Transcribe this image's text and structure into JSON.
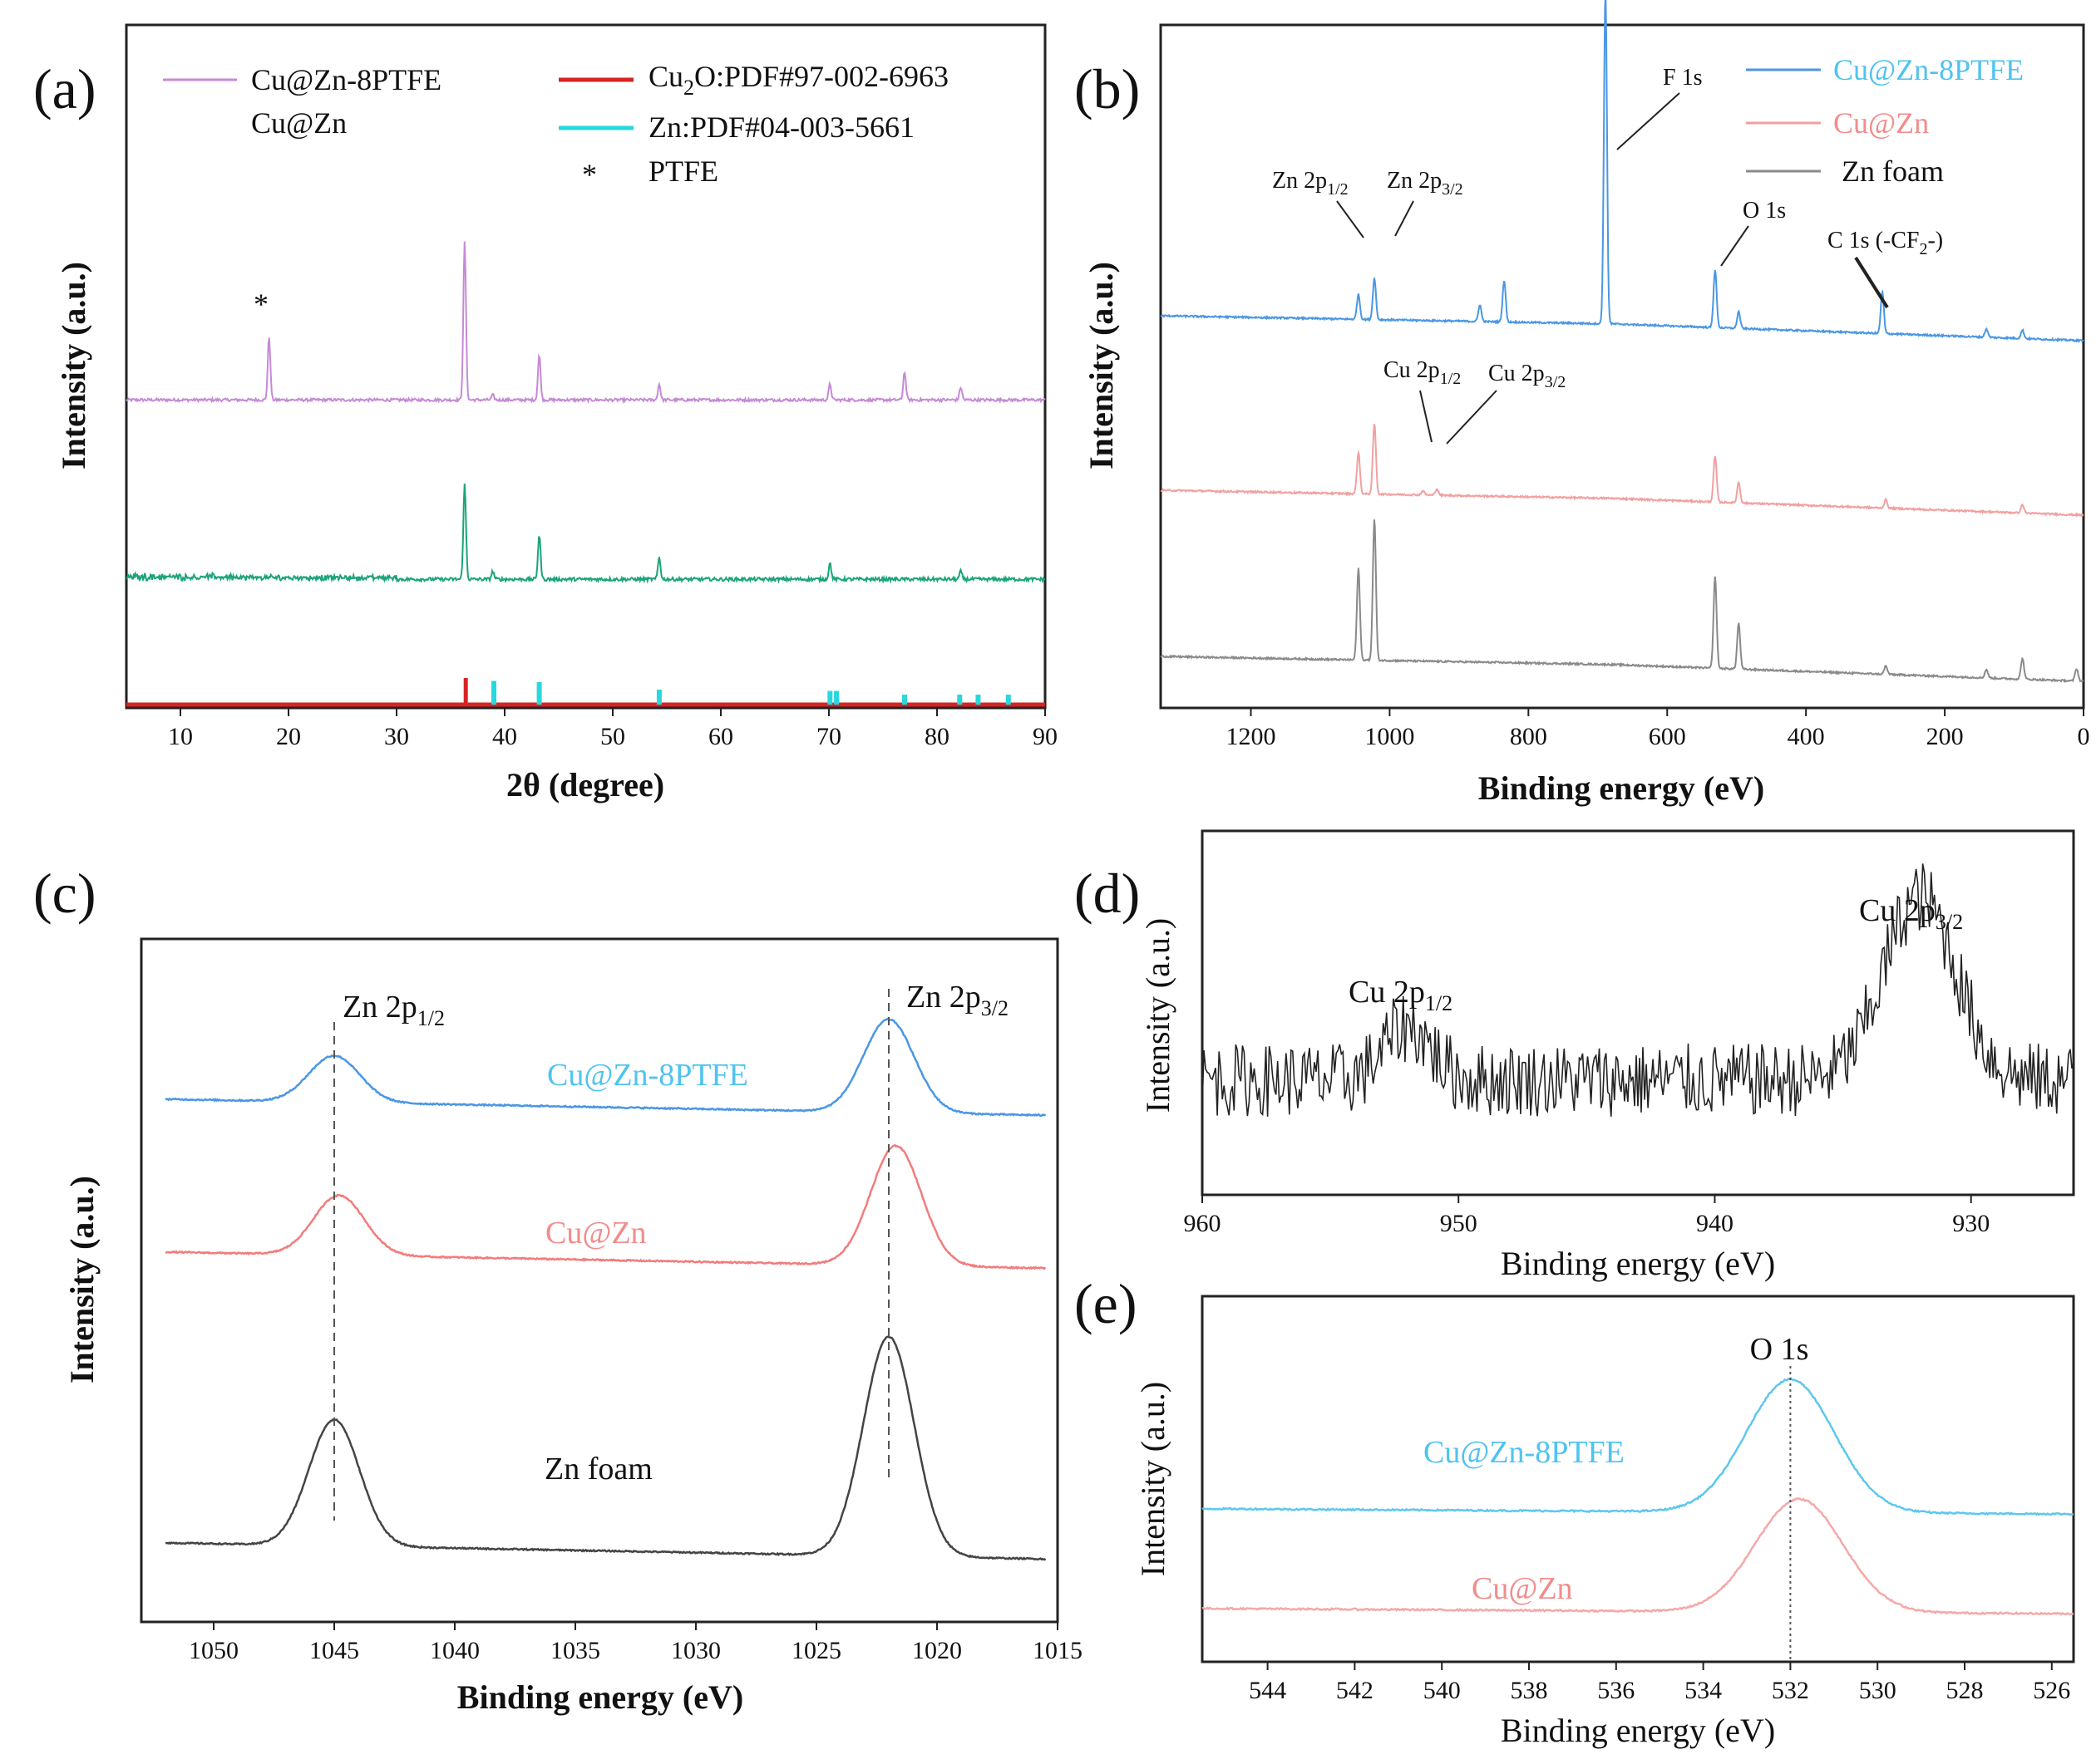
{
  "chart_data": [
    {
      "panel": "(a)",
      "type": "line",
      "xlabel": "2θ (degree)",
      "ylabel": "Intensity (a.u.)",
      "xlim": [
        5,
        90
      ],
      "xticks": [
        10,
        20,
        30,
        40,
        50,
        60,
        70,
        80,
        90
      ],
      "legend": [
        "Cu@Zn-8PTFE",
        "Cu@Zn",
        "Cu2O:PDF#97-002-6963",
        "Zn:PDF#04-003-5661",
        "PTFE"
      ],
      "legend_texts": {
        "s1": "Cu@Zn-8PTFE",
        "s2": "Cu@Zn",
        "ref1_a": "Cu",
        "ref1_sub": "2",
        "ref1_b": "O:PDF#97-002-6963",
        "ref2": "Zn:PDF#04-003-5661",
        "star": "*",
        "star_label": "PTFE"
      },
      "series": [
        {
          "name": "Cu@Zn-8PTFE",
          "color": "#c58ad6",
          "baseline": 0.0,
          "noise": 0.018,
          "peaks": [
            [
              18.2,
              0.4
            ],
            [
              36.3,
              1.0
            ],
            [
              38.9,
              0.03
            ],
            [
              43.2,
              0.28
            ],
            [
              54.3,
              0.1
            ],
            [
              70.1,
              0.1
            ],
            [
              77.0,
              0.18
            ],
            [
              82.2,
              0.08
            ]
          ]
        },
        {
          "name": "Cu@Zn",
          "color": "#1ba47a",
          "baseline": 0.0,
          "noise": 0.022,
          "peaks": [
            [
              36.3,
              0.6
            ],
            [
              38.9,
              0.05
            ],
            [
              43.2,
              0.28
            ],
            [
              54.3,
              0.14
            ],
            [
              70.1,
              0.1
            ],
            [
              82.2,
              0.05
            ]
          ]
        }
      ],
      "reference_Cu2O": {
        "color": "#d62323",
        "positions": [
          36.4
        ],
        "heights": [
          1.0
        ]
      },
      "reference_Zn": {
        "color": "#27d8de",
        "positions": [
          39.0,
          43.2,
          54.3,
          70.1,
          70.7,
          77.0,
          82.1,
          83.8,
          86.6
        ],
        "heights": [
          0.95,
          0.9,
          0.6,
          0.55,
          0.55,
          0.4,
          0.4,
          0.4,
          0.4
        ]
      },
      "annotations": [
        {
          "text": "*",
          "x": 18.2
        }
      ]
    },
    {
      "panel": "(b)",
      "type": "line",
      "xlabel": "Binding energy (eV)",
      "ylabel": "Intensity (a.u.)",
      "xlim": [
        1330,
        0
      ],
      "xticks": [
        1200,
        1000,
        800,
        600,
        400,
        200,
        0
      ],
      "legend": [
        "Cu@Zn-8PTFE",
        "Cu@Zn",
        "Zn foam"
      ],
      "series": [
        {
          "name": "Cu@Zn-8PTFE",
          "color": "#4a97e4",
          "peaks": [
            [
              1045,
              0.06
            ],
            [
              1022,
              0.1
            ],
            [
              870,
              0.04
            ],
            [
              835,
              0.1
            ],
            [
              689,
              0.8
            ],
            [
              531,
              0.14
            ],
            [
              497,
              0.04
            ],
            [
              290,
              0.1
            ],
            [
              140,
              0.02
            ],
            [
              88,
              0.02
            ]
          ]
        },
        {
          "name": "Cu@Zn",
          "color": "#f2a0a0",
          "peaks": [
            [
              1045,
              0.1
            ],
            [
              1022,
              0.17
            ],
            [
              952,
              0.01
            ],
            [
              932,
              0.015
            ],
            [
              531,
              0.11
            ],
            [
              497,
              0.05
            ],
            [
              285,
              0.02
            ],
            [
              88,
              0.02
            ]
          ]
        },
        {
          "name": "Zn foam",
          "color": "#8a8a8a",
          "peaks": [
            [
              1045,
              0.22
            ],
            [
              1022,
              0.34
            ],
            [
              531,
              0.22
            ],
            [
              497,
              0.11
            ],
            [
              285,
              0.02
            ],
            [
              140,
              0.02
            ],
            [
              88,
              0.05
            ],
            [
              10,
              0.03
            ]
          ]
        }
      ],
      "annotations": {
        "f1s": "F 1s",
        "zn2p12": "Zn 2p",
        "zn2p12_sub": "1/2",
        "zn2p32": "Zn 2p",
        "zn2p32_sub": "3/2",
        "o1s": "O 1s",
        "c1s_a": "C 1s (-CF",
        "c1s_sub": "2",
        "c1s_b": "-)",
        "cu2p12": "Cu 2p",
        "cu2p12_sub": "1/2",
        "cu2p32": "Cu 2p",
        "cu2p32_sub": "3/2"
      }
    },
    {
      "panel": "(c)",
      "type": "line",
      "xlabel": "Binding energy (eV)",
      "ylabel": "Intensity (a.u.)",
      "xlim": [
        1053,
        1015
      ],
      "xticks": [
        1050,
        1045,
        1040,
        1035,
        1030,
        1025,
        1020,
        1015
      ],
      "series": [
        {
          "name": "Cu@Zn-8PTFE",
          "color": "#4a97e4",
          "peaks": [
            [
              1045,
              0.35
            ],
            [
              1022,
              0.7
            ]
          ]
        },
        {
          "name": "Cu@Zn",
          "color": "#f27c7c",
          "peaks": [
            [
              1044.8,
              0.45
            ],
            [
              1021.7,
              0.9
            ]
          ]
        },
        {
          "name": "Zn foam",
          "color": "#444444",
          "peaks": [
            [
              1045,
              0.95
            ],
            [
              1022,
              1.65
            ]
          ]
        }
      ],
      "annotations": {
        "zn12": "Zn 2p",
        "zn12_sub": "1/2",
        "zn32": "Zn 2p",
        "zn32_sub": "3/2",
        "label1": "Cu@Zn-8PTFE",
        "label2": "Cu@Zn",
        "label3": "Zn foam"
      },
      "reference_lines": [
        1045,
        1022
      ]
    },
    {
      "panel": "(d)",
      "type": "line",
      "xlabel": "Binding energy (eV)",
      "ylabel": "Intensity (a.u.)",
      "xlim": [
        960,
        926
      ],
      "xticks": [
        960,
        950,
        940,
        930
      ],
      "series": [
        {
          "name": "Cu 2p",
          "color": "#222222",
          "peaks": [
            [
              952,
              0.25
            ],
            [
              932,
              0.85
            ]
          ]
        }
      ],
      "annotations": {
        "cu12": "Cu 2p",
        "cu12_sub": "1/2",
        "cu32": "Cu 2p",
        "cu32_sub": "3/2"
      }
    },
    {
      "panel": "(e)",
      "type": "line",
      "xlabel": "Binding energy (eV)",
      "ylabel": "Intensity (a.u.)",
      "xlim": [
        545.5,
        525.5
      ],
      "xticks": [
        544,
        542,
        540,
        538,
        536,
        534,
        532,
        530,
        528,
        526
      ],
      "series": [
        {
          "name": "Cu@Zn-8PTFE",
          "color": "#5cc8ee",
          "peaks": [
            [
              532,
              1.0
            ]
          ]
        },
        {
          "name": "Cu@Zn",
          "color": "#f5a8a8",
          "peaks": [
            [
              531.8,
              0.85
            ]
          ]
        }
      ],
      "annotations": {
        "o1s": "O 1s",
        "label1": "Cu@Zn-8PTFE",
        "label2": "Cu@Zn"
      },
      "reference_lines": [
        532
      ]
    }
  ]
}
